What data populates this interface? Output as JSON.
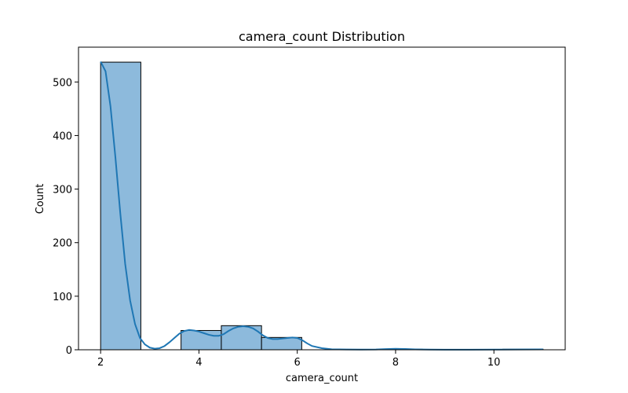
{
  "chart_data": {
    "type": "bar",
    "title": "camera_count Distribution",
    "xlabel": "camera_count",
    "ylabel": "Count",
    "xlim": [
      1.55,
      11.45
    ],
    "ylim": [
      0,
      565
    ],
    "x_ticks": [
      2,
      4,
      6,
      8,
      10
    ],
    "y_ticks": [
      0,
      100,
      200,
      300,
      400,
      500
    ],
    "bins": [
      {
        "x0": 2.0,
        "x1": 2.818,
        "count": 537
      },
      {
        "x0": 2.818,
        "x1": 3.636,
        "count": 0
      },
      {
        "x0": 3.636,
        "x1": 4.455,
        "count": 36
      },
      {
        "x0": 4.455,
        "x1": 5.273,
        "count": 45
      },
      {
        "x0": 5.273,
        "x1": 6.091,
        "count": 23
      },
      {
        "x0": 6.091,
        "x1": 6.909,
        "count": 0
      },
      {
        "x0": 6.909,
        "x1": 7.727,
        "count": 0
      },
      {
        "x0": 7.727,
        "x1": 8.545,
        "count": 1
      },
      {
        "x0": 8.545,
        "x1": 9.364,
        "count": 0
      },
      {
        "x0": 9.364,
        "x1": 10.182,
        "count": 0
      },
      {
        "x0": 10.182,
        "x1": 11.0,
        "count": 1
      }
    ],
    "kde": {
      "x": [
        2.0,
        2.1,
        2.2,
        2.3,
        2.4,
        2.5,
        2.6,
        2.7,
        2.8,
        2.9,
        3.0,
        3.1,
        3.2,
        3.3,
        3.4,
        3.5,
        3.6,
        3.7,
        3.8,
        3.9,
        4.0,
        4.1,
        4.2,
        4.3,
        4.4,
        4.5,
        4.6,
        4.7,
        4.8,
        4.9,
        5.0,
        5.1,
        5.2,
        5.3,
        5.4,
        5.5,
        5.6,
        5.7,
        5.8,
        5.9,
        6.0,
        6.1,
        6.2,
        6.3,
        6.5,
        6.7,
        7.0,
        7.3,
        7.6,
        7.8,
        8.0,
        8.2,
        8.4,
        8.7,
        9.0,
        9.5,
        10.0,
        10.5,
        11.0
      ],
      "y": [
        538,
        520,
        455,
        360,
        255,
        160,
        92,
        48,
        22,
        10,
        4,
        2,
        3,
        7,
        14,
        22,
        30,
        35,
        37,
        36,
        34,
        31,
        28,
        26,
        26,
        29,
        35,
        40,
        43,
        44,
        43,
        40,
        34,
        27,
        22,
        20,
        20,
        21,
        22,
        23,
        22,
        18,
        12,
        7,
        3,
        1,
        0.5,
        0.3,
        0.5,
        1.2,
        1.8,
        1.4,
        0.8,
        0.3,
        0.2,
        0.2,
        0.3,
        0.5,
        0.8
      ]
    },
    "colors": {
      "bar_fill": "#8dbadc",
      "bar_edge": "#000000",
      "kde_line": "#1f77b4"
    },
    "grid": false,
    "legend": "none"
  }
}
